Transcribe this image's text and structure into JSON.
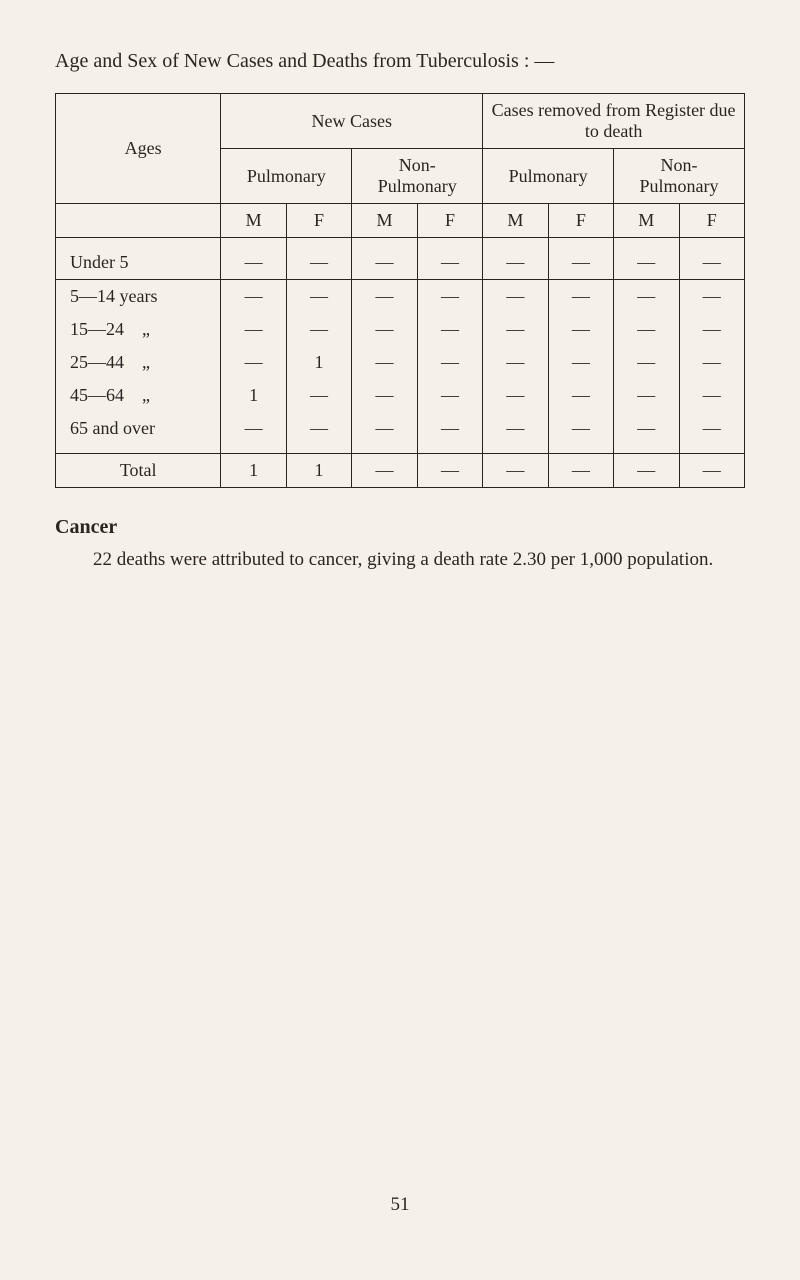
{
  "title": "Age and Sex of New Cases and Deaths from Tuberculosis : —",
  "table": {
    "header1": {
      "new_cases": "New Cases",
      "removed": "Cases removed from Register due to death"
    },
    "header2": {
      "ages": "Ages",
      "pulmonary1": "Pulmonary",
      "nonpulmonary1": "Non-\nPulmonary",
      "pulmonary2": "Pulmonary",
      "nonpulmonary2": "Non-\nPulmonary"
    },
    "header3": {
      "m": "M",
      "f": "F"
    },
    "rows": [
      {
        "label": "Under 5",
        "c": [
          "—",
          "—",
          "—",
          "—",
          "—",
          "—",
          "—",
          "—"
        ]
      },
      {
        "label": "5—14 years",
        "c": [
          "—",
          "—",
          "—",
          "—",
          "—",
          "—",
          "—",
          "—"
        ]
      },
      {
        "label": "15—24    „",
        "c": [
          "—",
          "—",
          "—",
          "—",
          "—",
          "—",
          "—",
          "—"
        ]
      },
      {
        "label": "25—44    „",
        "c": [
          "—",
          "1",
          "—",
          "—",
          "—",
          "—",
          "—",
          "—"
        ]
      },
      {
        "label": "45—64    „",
        "c": [
          "1",
          "—",
          "—",
          "—",
          "—",
          "—",
          "—",
          "—"
        ]
      },
      {
        "label": "65 and over",
        "c": [
          "—",
          "—",
          "—",
          "—",
          "—",
          "—",
          "—",
          "—"
        ]
      }
    ],
    "total": {
      "label": "Total",
      "c": [
        "1",
        "1",
        "—",
        "—",
        "—",
        "—",
        "—",
        "—"
      ]
    }
  },
  "cancer": {
    "heading": "Cancer",
    "text": "22 deaths were attributed to cancer, giving a death rate 2.30 per 1,000 population."
  },
  "page_number": "51"
}
